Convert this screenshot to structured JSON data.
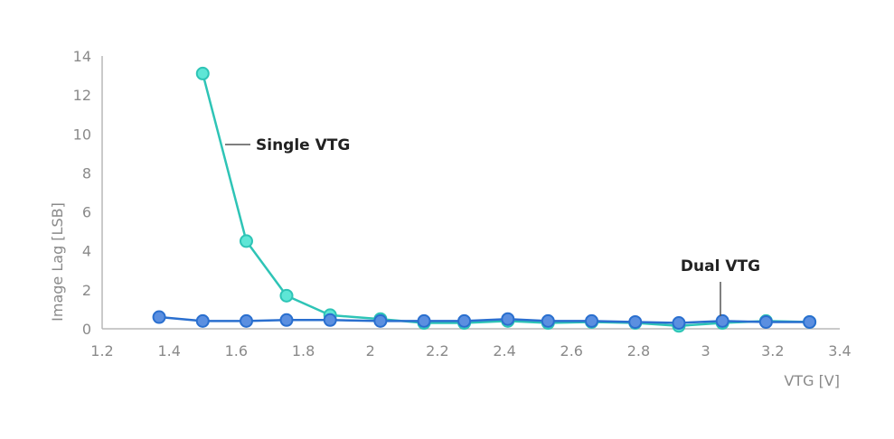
{
  "chart_data": {
    "type": "line",
    "title": "",
    "xlabel": "VTG [V]",
    "ylabel": "Image Lag [LSB]",
    "xlim": [
      1.2,
      3.4
    ],
    "ylim": [
      0,
      14
    ],
    "xticks": [
      "1.2",
      "1.4",
      "1.6",
      "1.8",
      "2",
      "2.2",
      "2.4",
      "2.6",
      "2.8",
      "3",
      "3.2",
      "3.4"
    ],
    "yticks": [
      "0",
      "2",
      "4",
      "6",
      "8",
      "10",
      "12",
      "14"
    ],
    "grid": false,
    "legend": "inline labels",
    "series": [
      {
        "name": "Single VTG",
        "color": "#2ec4b6",
        "marker_fill": "#5ee6d6",
        "x": [
          1.5,
          1.63,
          1.75,
          1.88,
          2.03,
          2.16,
          2.28,
          2.41,
          2.53,
          2.66,
          2.79,
          2.92,
          3.05,
          3.18,
          3.31
        ],
        "y": [
          13.1,
          4.5,
          1.7,
          0.7,
          0.5,
          0.3,
          0.3,
          0.4,
          0.3,
          0.35,
          0.3,
          0.15,
          0.3,
          0.4,
          0.35
        ]
      },
      {
        "name": "Dual VTG",
        "color": "#2a6fcf",
        "marker_fill": "#5b8fe0",
        "x": [
          1.37,
          1.5,
          1.63,
          1.75,
          1.88,
          2.03,
          2.16,
          2.28,
          2.41,
          2.53,
          2.66,
          2.79,
          2.92,
          3.05,
          3.18,
          3.31
        ],
        "y": [
          0.6,
          0.4,
          0.4,
          0.45,
          0.45,
          0.4,
          0.4,
          0.4,
          0.5,
          0.4,
          0.4,
          0.35,
          0.3,
          0.4,
          0.35,
          0.35
        ]
      }
    ]
  }
}
